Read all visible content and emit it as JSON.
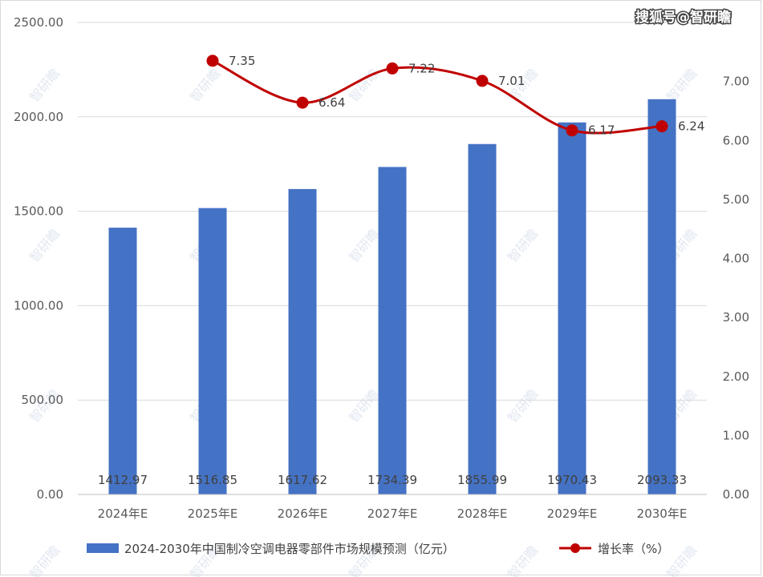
{
  "brand": "搜狐号@智研瞻",
  "watermark": "智研瞻",
  "colors": {
    "bar": "#4472c4",
    "line": "#c00000",
    "grid": "#d9d9d9"
  },
  "chart_data": {
    "type": "bar",
    "categories": [
      "2024年E",
      "2025年E",
      "2026年E",
      "2027年E",
      "2028年E",
      "2029年E",
      "2030年E"
    ],
    "series": [
      {
        "name": "2024-2030年中国制冷空调电器零部件市场规模预测（亿元）",
        "type": "bar",
        "axis": "left",
        "values": [
          1412.97,
          1516.85,
          1617.62,
          1734.39,
          1855.99,
          1970.43,
          2093.33
        ],
        "labels": [
          "1412.97",
          "1516.85",
          "1617.62",
          "1734.39",
          "1855.99",
          "1970.43",
          "2093.33"
        ]
      },
      {
        "name": "增长率（%）",
        "type": "line",
        "axis": "right",
        "values": [
          null,
          7.35,
          6.64,
          7.22,
          7.01,
          6.17,
          6.24
        ],
        "labels": [
          "",
          "7.35",
          "6.64",
          "7.22",
          "7.01",
          "6.17",
          "6.24"
        ]
      }
    ],
    "y_left": {
      "ylim": [
        0,
        2500
      ],
      "ticks": [
        "0.00",
        "500.00",
        "1000.00",
        "1500.00",
        "2000.00",
        "2500.00"
      ]
    },
    "y_right": {
      "ylim": [
        0,
        8
      ],
      "ticks": [
        "0.00",
        "1.00",
        "2.00",
        "3.00",
        "4.00",
        "5.00",
        "6.00",
        "7.00"
      ]
    },
    "grid": true,
    "legend": "bottom"
  }
}
